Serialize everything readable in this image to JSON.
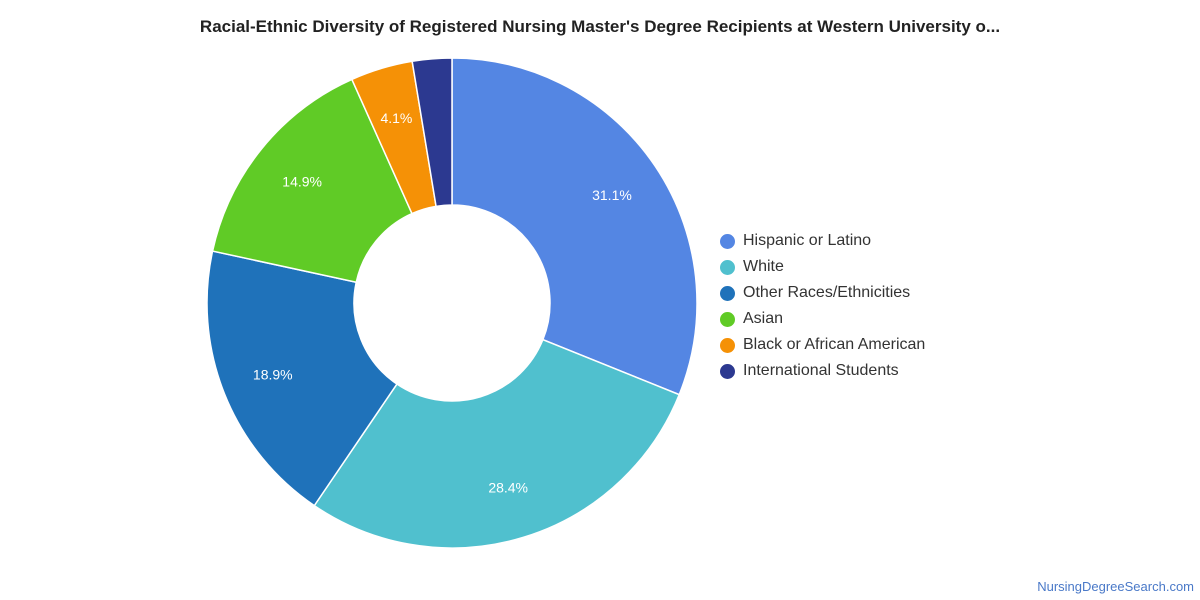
{
  "chart_data": {
    "type": "pie",
    "subtype": "donut",
    "title": "Racial-Ethnic Diversity of Registered Nursing Master's Degree Recipients at Western University o...",
    "legend_position": "right",
    "slices": [
      {
        "name": "Hispanic or Latino",
        "value": 31.1,
        "label": "31.1%",
        "color": "#5486e3"
      },
      {
        "name": "White",
        "value": 28.4,
        "label": "28.4%",
        "color": "#50c0ce"
      },
      {
        "name": "Other Races/Ethnicities",
        "value": 18.9,
        "label": "18.9%",
        "color": "#1f72ba"
      },
      {
        "name": "Asian",
        "value": 14.9,
        "label": "14.9%",
        "color": "#60cb26"
      },
      {
        "name": "Black or African American",
        "value": 4.1,
        "label": "4.1%",
        "color": "#f59106"
      },
      {
        "name": "International Students",
        "value": 2.6,
        "label": "",
        "color": "#2c3990"
      }
    ]
  },
  "footer": {
    "source": "NursingDegreeSearch.com"
  }
}
